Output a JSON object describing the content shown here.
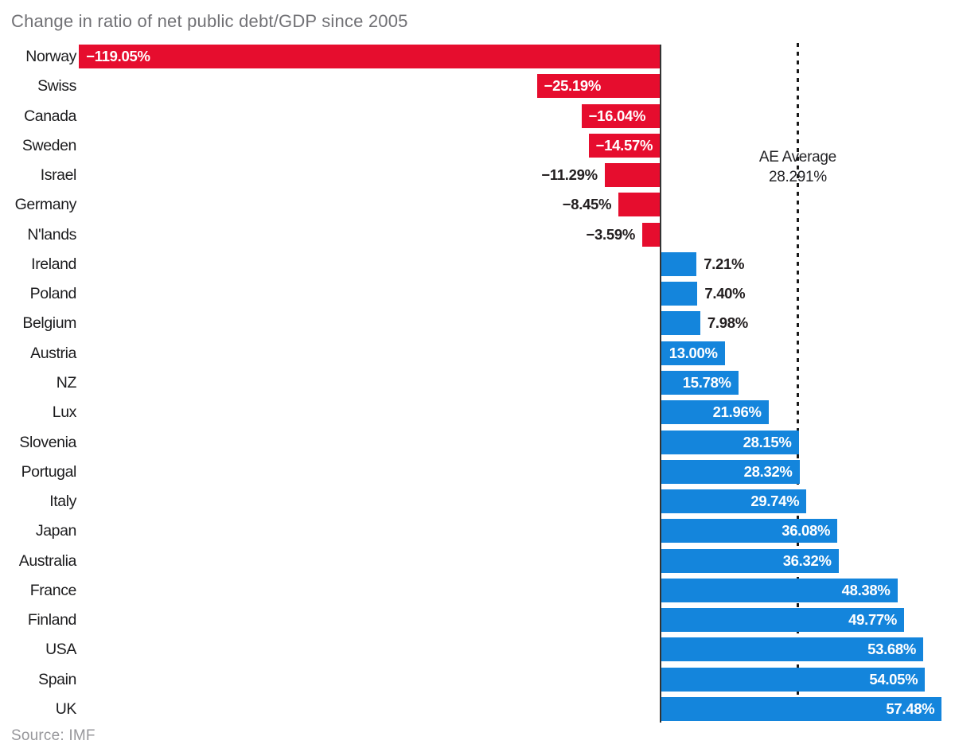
{
  "chart_data": {
    "type": "bar",
    "orientation": "horizontal",
    "title": "Change in ratio of net public debt/GDP since 2005",
    "source": "Source: IMF",
    "categories": [
      "Norway",
      "Swiss",
      "Canada",
      "Sweden",
      "Israel",
      "Germany",
      "N'lands",
      "Ireland",
      "Poland",
      "Belgium",
      "Austria",
      "NZ",
      "Lux",
      "Slovenia",
      "Portugal",
      "Italy",
      "Japan",
      "Australia",
      "France",
      "Finland",
      "USA",
      "Spain",
      "UK"
    ],
    "values": [
      -119.05,
      -25.19,
      -16.04,
      -14.57,
      -11.29,
      -8.45,
      -3.59,
      7.21,
      7.4,
      7.98,
      13.0,
      15.78,
      21.96,
      28.15,
      28.32,
      29.74,
      36.08,
      36.32,
      48.38,
      49.77,
      53.68,
      54.05,
      57.48
    ],
    "value_labels": [
      "−119.05%",
      "−25.19%",
      "−16.04%",
      "−14.57%",
      "−11.29%",
      "−8.45%",
      "−3.59%",
      "7.21%",
      "7.40%",
      "7.98%",
      "13.00%",
      "15.78%",
      "21.96%",
      "28.15%",
      "28.32%",
      "29.74%",
      "36.08%",
      "36.32%",
      "48.38%",
      "49.77%",
      "53.68%",
      "54.05%",
      "57.48%"
    ],
    "average_line": {
      "value": 28.291,
      "label_line1": "AE Average",
      "label_line2": "28.291%"
    },
    "xlim": [
      -135,
      60
    ],
    "grid": false,
    "legend": "none",
    "colors": {
      "negative_bar": "#e60d2e",
      "positive_bar": "#1485dc",
      "axis_line": "#333333",
      "average_line": "#1a1a1a",
      "label_dark": "#231f20",
      "label_light": "#ffffff",
      "category_text": "#1c1c1e",
      "title_text": "#717175",
      "source_text": "#97979b",
      "annotation_text": "#232326"
    }
  }
}
